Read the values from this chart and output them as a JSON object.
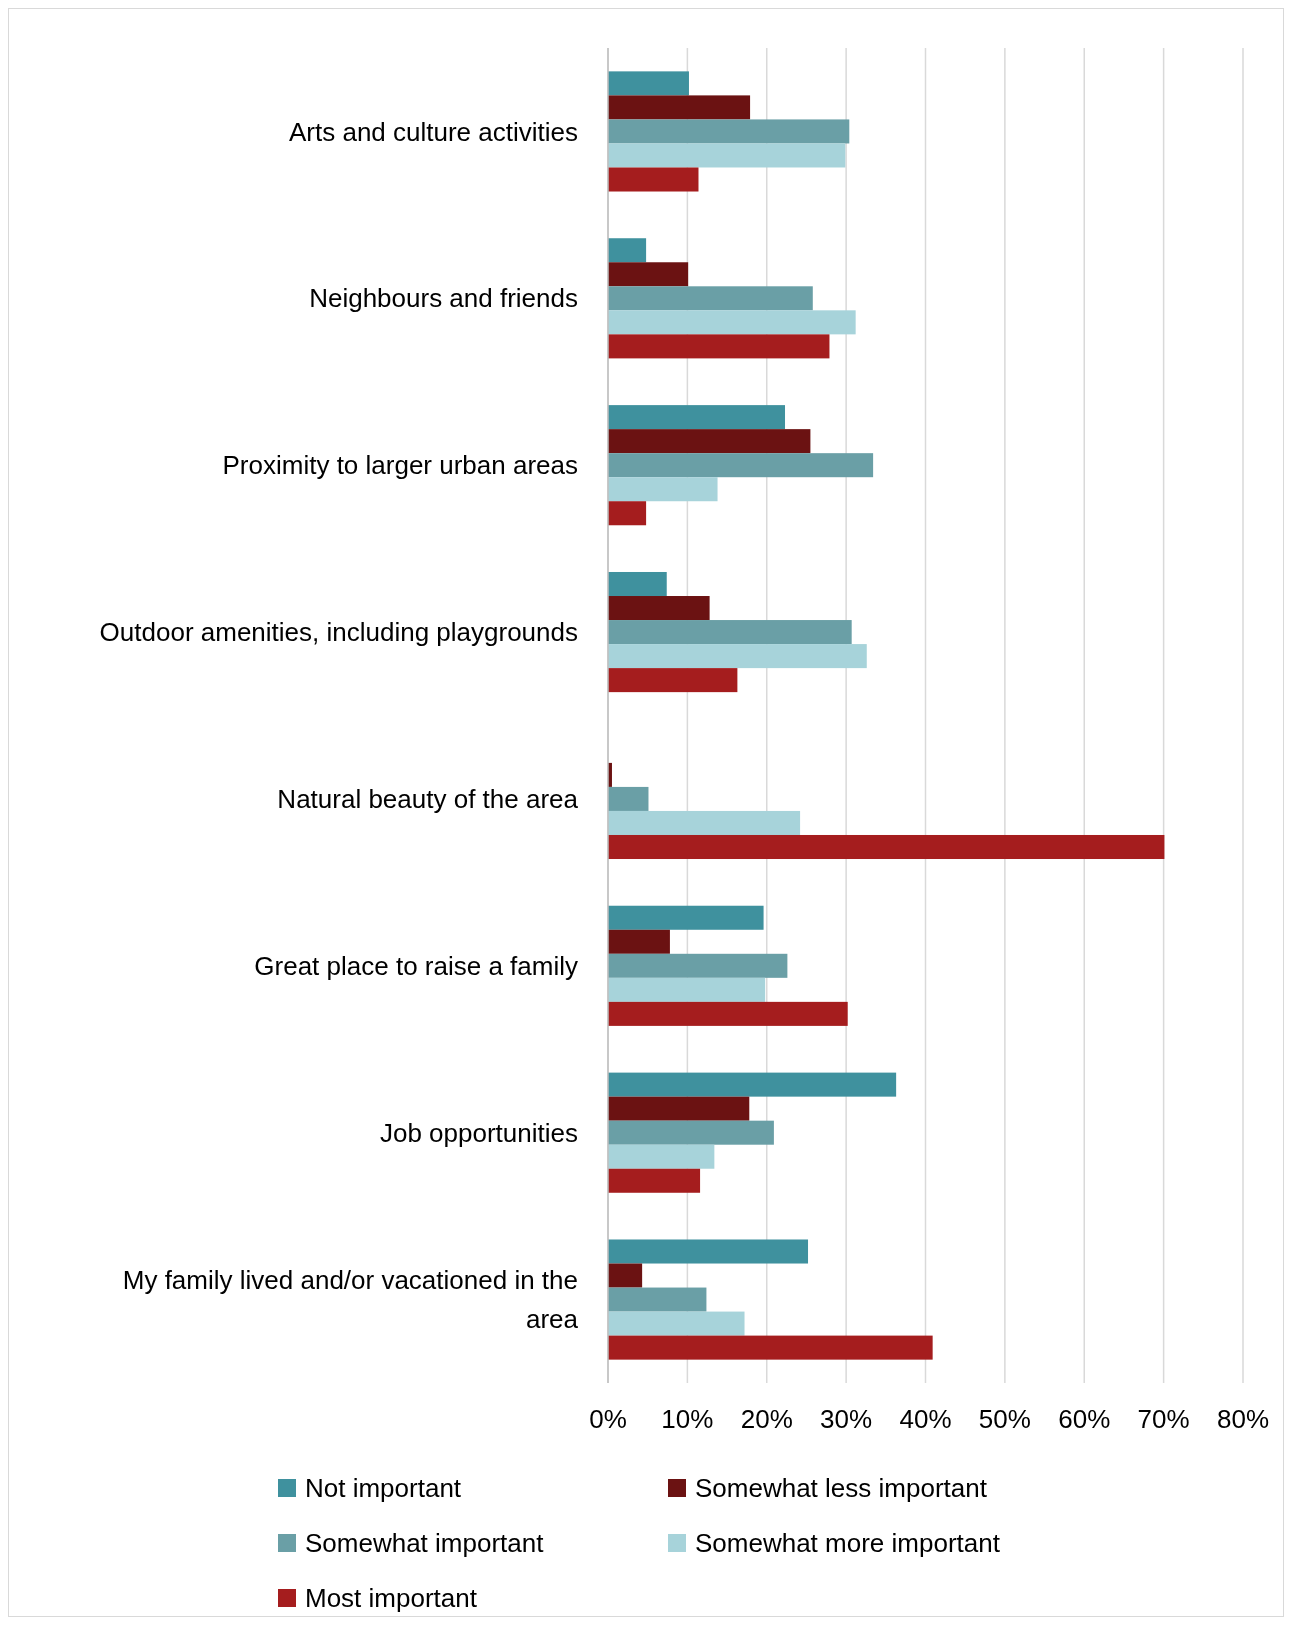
{
  "chart_data": {
    "type": "bar",
    "orientation": "horizontal",
    "categories": [
      "Arts and culture activities",
      "Neighbours and friends",
      "Proximity to larger urban areas",
      "Outdoor amenities, including playgrounds",
      "Natural beauty of the area",
      "Great place to raise a family",
      "Job opportunities",
      "My family lived and/or vacationed in the area"
    ],
    "series": [
      {
        "name": "Not important",
        "color": "#3f919e",
        "values": [
          10.2,
          4.8,
          22.3,
          7.4,
          0,
          19.6,
          36.3,
          25.2
        ]
      },
      {
        "name": "Somewhat less important",
        "color": "#6b1212",
        "values": [
          17.9,
          10.1,
          25.5,
          12.8,
          0.5,
          7.8,
          17.8,
          4.3
        ]
      },
      {
        "name": "Somewhat important",
        "color": "#6a9fa6",
        "values": [
          30.4,
          25.8,
          33.4,
          30.7,
          5.1,
          22.6,
          20.9,
          12.4
        ]
      },
      {
        "name": "Somewhat more important",
        "color": "#a7d3da",
        "values": [
          29.9,
          31.2,
          13.8,
          32.6,
          24.2,
          19.8,
          13.4,
          17.2
        ]
      },
      {
        "name": "Most important",
        "color": "#a51d1e",
        "values": [
          11.4,
          27.9,
          4.8,
          16.3,
          70.1,
          30.2,
          11.6,
          40.9
        ]
      }
    ],
    "xlim": [
      0,
      80
    ],
    "xticks": [
      {
        "value": 0,
        "label": "0%"
      },
      {
        "value": 10,
        "label": "10%"
      },
      {
        "value": 20,
        "label": "20%"
      },
      {
        "value": 30,
        "label": "30%"
      },
      {
        "value": 40,
        "label": "40%"
      },
      {
        "value": 50,
        "label": "50%"
      },
      {
        "value": 60,
        "label": "60%"
      },
      {
        "value": 70,
        "label": "70%"
      },
      {
        "value": 80,
        "label": "80%"
      }
    ],
    "grid": "x",
    "legend": "bottom"
  }
}
